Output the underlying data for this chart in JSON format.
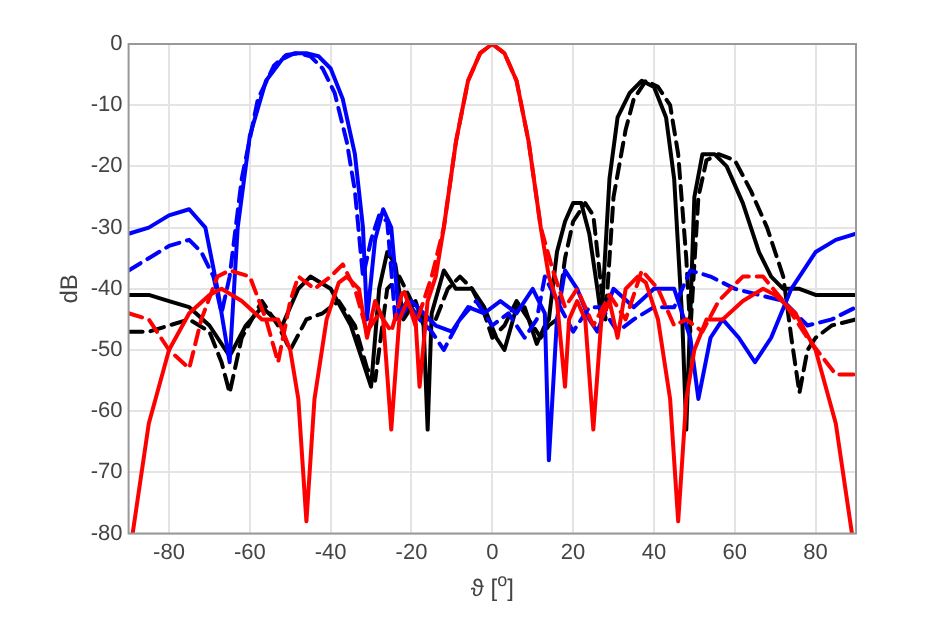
{
  "chart_data": {
    "type": "line",
    "xlabel": "ϑ [$^{o}$]",
    "ylabel": "dB",
    "xlim": [
      -90,
      90
    ],
    "ylim": [
      -80,
      0
    ],
    "xticks": [
      -80,
      -60,
      -40,
      -20,
      0,
      20,
      40,
      60,
      80
    ],
    "yticks": [
      -80,
      -70,
      -60,
      -50,
      -40,
      -30,
      -20,
      -10,
      0
    ],
    "grid": true,
    "legend": false,
    "marker": "none",
    "series": [
      {
        "color": "#ff0000",
        "line_style": "solid",
        "x": [
          -89,
          -85,
          -80,
          -75,
          -70,
          -67,
          -62,
          -57,
          -53,
          -50,
          -48,
          -46,
          -44,
          -41,
          -38,
          -36,
          -33,
          -31,
          -29,
          -27,
          -25,
          -23,
          -21,
          -19,
          -18,
          -16,
          -14,
          -12,
          -9,
          -6,
          -3,
          0,
          3,
          6,
          9,
          12,
          14,
          16,
          18,
          19,
          21,
          23,
          25,
          27,
          29,
          31,
          33,
          36,
          38,
          41,
          44,
          46,
          48,
          50,
          53,
          57,
          62,
          67,
          70,
          75,
          80,
          85,
          89
        ],
        "values": [
          -80,
          -62,
          -50,
          -44,
          -41,
          -40,
          -42,
          -45,
          -45,
          -50,
          -58,
          -78,
          -58,
          -45,
          -39,
          -38,
          -40,
          -48,
          -42,
          -45,
          -63,
          -45,
          -42,
          -45,
          -56,
          -42,
          -38,
          -30,
          -16,
          -6,
          -1.5,
          0,
          -1.5,
          -6,
          -16,
          -30,
          -38,
          -42,
          -56,
          -45,
          -42,
          -45,
          -63,
          -45,
          -42,
          -48,
          -40,
          -38,
          -39,
          -45,
          -58,
          -78,
          -58,
          -50,
          -45,
          -45,
          -42,
          -40,
          -41,
          -44,
          -50,
          -62,
          -80
        ]
      },
      {
        "color": "#ff0000",
        "line_style": "dashed",
        "x": [
          -90,
          -85,
          -80,
          -75,
          -72,
          -68,
          -65,
          -60,
          -56,
          -53,
          -50,
          -48,
          -44,
          -40,
          -37,
          -34,
          -31,
          -28,
          -25,
          -22,
          -19,
          -17,
          -15,
          -12,
          -9,
          -6,
          -3,
          0,
          3,
          6,
          9,
          12,
          15,
          18,
          21,
          25,
          29,
          33,
          37,
          41,
          45,
          48,
          52,
          56,
          62,
          67,
          72,
          78,
          85,
          90
        ],
        "values": [
          -44,
          -45,
          -50,
          -53,
          -45,
          -38,
          -37,
          -38,
          -45,
          -52,
          -42,
          -38,
          -40,
          -38,
          -36,
          -40,
          -47,
          -44,
          -47,
          -40,
          -46,
          -42,
          -38,
          -30,
          -16,
          -6,
          -1.5,
          0,
          -1.5,
          -6,
          -16,
          -30,
          -37,
          -43,
          -40,
          -46,
          -41,
          -45,
          -37,
          -40,
          -46,
          -45,
          -47,
          -42,
          -38,
          -38,
          -42,
          -48,
          -54,
          -54
        ]
      },
      {
        "color": "#0000ff",
        "line_style": "solid",
        "x": [
          -90,
          -85,
          -80,
          -75,
          -71,
          -68,
          -66,
          -65,
          -63,
          -60,
          -56,
          -52,
          -49,
          -46,
          -43,
          -40,
          -37,
          -34,
          -32,
          -31,
          -29,
          -27,
          -25,
          -23,
          -20,
          -17,
          -14,
          -10,
          -6,
          -2,
          2,
          6,
          10,
          13,
          14,
          16,
          18,
          21,
          24,
          26,
          30,
          35,
          40,
          45,
          49,
          51,
          54,
          57,
          61,
          65,
          69,
          74,
          80,
          85,
          90
        ],
        "values": [
          -31,
          -30,
          -28,
          -27,
          -30,
          -40,
          -48,
          -52,
          -30,
          -15,
          -6,
          -2.5,
          -1.5,
          -1.5,
          -2,
          -4,
          -9,
          -18,
          -30,
          -45,
          -32,
          -27,
          -30,
          -45,
          -42,
          -44,
          -46,
          -47,
          -43,
          -44,
          -42,
          -44,
          -40,
          -44,
          -68,
          -45,
          -37,
          -40,
          -45,
          -47,
          -40,
          -43,
          -40,
          -40,
          -48,
          -58,
          -48,
          -45,
          -48,
          -52,
          -48,
          -40,
          -34,
          -32,
          -31
        ]
      },
      {
        "color": "#0000ff",
        "line_style": "dashed",
        "x": [
          -90,
          -85,
          -80,
          -75,
          -72,
          -69,
          -67,
          -65,
          -62,
          -58,
          -54,
          -51,
          -48,
          -45,
          -42,
          -39,
          -36,
          -34,
          -32,
          -30,
          -28,
          -26,
          -24,
          -21,
          -18,
          -15,
          -12,
          -8,
          -4,
          0,
          4,
          8,
          11,
          13,
          16,
          20,
          24,
          27,
          31,
          35,
          40,
          45,
          49,
          54,
          60,
          66,
          72,
          78,
          84,
          90
        ],
        "values": [
          -37,
          -35,
          -33,
          -32,
          -34,
          -38,
          -44,
          -38,
          -22,
          -9,
          -3.5,
          -1.8,
          -1.5,
          -2,
          -4,
          -8,
          -16,
          -24,
          -38,
          -32,
          -28,
          -29,
          -45,
          -42,
          -45,
          -47,
          -50,
          -45,
          -42,
          -46,
          -44,
          -48,
          -45,
          -38,
          -42,
          -47,
          -43,
          -43,
          -47,
          -45,
          -43,
          -43,
          -37,
          -38,
          -40,
          -41,
          -42,
          -46,
          -45,
          -43
        ]
      },
      {
        "color": "#000000",
        "line_style": "solid",
        "x": [
          -90,
          -85,
          -80,
          -75,
          -70,
          -65,
          -61,
          -57,
          -52,
          -48,
          -45,
          -40,
          -35,
          -32,
          -30,
          -28,
          -26,
          -24,
          -22,
          -19,
          -17,
          -16,
          -15,
          -12,
          -9,
          -5,
          -2,
          1,
          3,
          6,
          8,
          11,
          13,
          14,
          16,
          18,
          20,
          22,
          24,
          26,
          27,
          29,
          31,
          34,
          37,
          40,
          43,
          45,
          47,
          48,
          50,
          52,
          55,
          58,
          62,
          66,
          69,
          72,
          76,
          80,
          85,
          90
        ],
        "values": [
          -41,
          -41,
          -42,
          -43,
          -46,
          -51,
          -46,
          -43,
          -46,
          -40,
          -38,
          -40,
          -46,
          -52,
          -56,
          -40,
          -34,
          -36,
          -45,
          -42,
          -46,
          -63,
          -44,
          -37,
          -40,
          -40,
          -43,
          -48,
          -50,
          -43,
          -43,
          -49,
          -46,
          -45,
          -34,
          -29,
          -26,
          -26,
          -31,
          -40,
          -45,
          -22,
          -12,
          -8,
          -6,
          -7,
          -12,
          -22,
          -45,
          -63,
          -25,
          -18,
          -18,
          -20,
          -26,
          -34,
          -38,
          -40,
          -40,
          -41,
          -41,
          -41
        ]
      },
      {
        "color": "#000000",
        "line_style": "dashed",
        "x": [
          -90,
          -85,
          -80,
          -75,
          -70,
          -67,
          -65,
          -62,
          -57,
          -53,
          -50,
          -46,
          -42,
          -38,
          -34,
          -31,
          -29,
          -26,
          -23,
          -20,
          -17,
          -14,
          -11,
          -8,
          -5,
          -2,
          0,
          3,
          6,
          9,
          12,
          14,
          16,
          18,
          20,
          23,
          25,
          27,
          28,
          30,
          33,
          35,
          38,
          41,
          44,
          46,
          48,
          49,
          51,
          53,
          56,
          60,
          64,
          68,
          72,
          74,
          76,
          78,
          80,
          84,
          90
        ],
        "values": [
          -47,
          -47,
          -46,
          -45,
          -47,
          -52,
          -57,
          -48,
          -42,
          -46,
          -50,
          -45,
          -44,
          -42,
          -46,
          -53,
          -55,
          -40,
          -38,
          -42,
          -45,
          -45,
          -40,
          -38,
          -40,
          -44,
          -48,
          -46,
          -42,
          -45,
          -48,
          -46,
          -45,
          -35,
          -29,
          -26,
          -28,
          -40,
          -45,
          -25,
          -14,
          -9,
          -6,
          -7,
          -10,
          -18,
          -35,
          -47,
          -25,
          -19,
          -18,
          -19,
          -24,
          -30,
          -38,
          -48,
          -57,
          -50,
          -48,
          -46,
          -45
        ]
      }
    ]
  }
}
